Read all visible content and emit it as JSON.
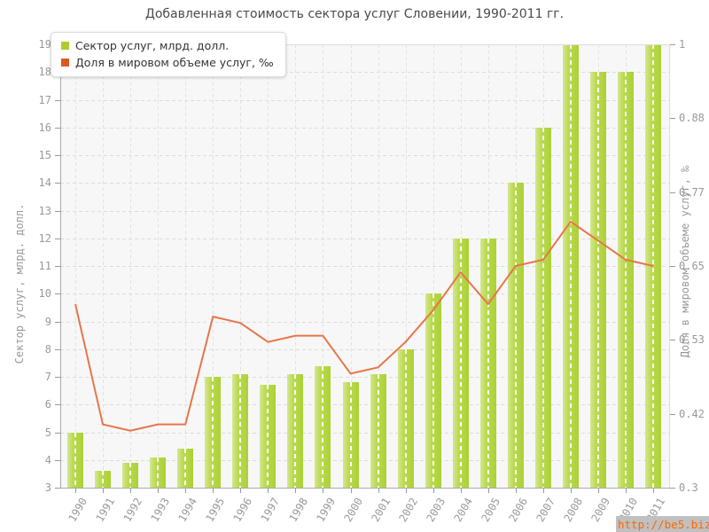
{
  "title": "Добавленная стоимость сектора услуг Словении, 1990-2011 гг.",
  "watermark": "http://be5.biz/",
  "colors": {
    "bar": "#abd134",
    "bar_light": "#d3e890",
    "line": "#e5764a",
    "legend_bar_swatch": "#aecb2f",
    "legend_line_swatch": "#dd5b21",
    "plot_background": "#f7f7f7",
    "grid": "#dcdcdc",
    "axis_text": "#999999",
    "title_text": "#4a4a4a",
    "watermark_background": "#c0c0c0",
    "watermark_text": "#ff6600"
  },
  "chart_data": {
    "type": "bar",
    "subtype": "bar+line combo, dual y-axes",
    "title": "Добавленная стоимость сектора услуг Словении, 1990-2011 гг.",
    "categories": [
      "1990",
      "1991",
      "1992",
      "1993",
      "1994",
      "1995",
      "1996",
      "1997",
      "1998",
      "1999",
      "2000",
      "2001",
      "2002",
      "2003",
      "2004",
      "2005",
      "2006",
      "2007",
      "2008",
      "2009",
      "2010",
      "2011"
    ],
    "series": [
      {
        "name": "Сектор услуг, млрд. долл.",
        "type": "bar",
        "axis": "left",
        "color": "#abd134",
        "values": [
          5.0,
          3.6,
          3.9,
          4.1,
          4.4,
          7.0,
          7.1,
          6.7,
          7.1,
          7.4,
          6.8,
          7.1,
          8.0,
          10.0,
          12.0,
          12.0,
          14.0,
          16.0,
          19.0,
          18.0,
          18.0,
          19.0
        ]
      },
      {
        "name": "Доля в мировом объеме услуг, ‰",
        "type": "line",
        "axis": "right",
        "color": "#e5764a",
        "values": [
          0.59,
          0.4,
          0.39,
          0.4,
          0.4,
          0.57,
          0.56,
          0.53,
          0.54,
          0.54,
          0.48,
          0.49,
          0.53,
          0.58,
          0.64,
          0.59,
          0.65,
          0.66,
          0.72,
          0.69,
          0.66,
          0.65
        ]
      }
    ],
    "left_axis": {
      "label": "Сектор услуг, млрд. долл.",
      "min": 3,
      "max": 19,
      "ticks": [
        "3",
        "4",
        "5",
        "6",
        "7",
        "8",
        "9",
        "10",
        "11",
        "12",
        "13",
        "14",
        "15",
        "16",
        "17",
        "18",
        "19"
      ]
    },
    "right_axis": {
      "label": "Доля в мировом объеме услуг, ‰",
      "min": 0.3,
      "max": 1,
      "ticks": [
        "1",
        "0.88",
        "0.77",
        "0.65",
        "0.53",
        "0.42",
        "0.3"
      ]
    },
    "grid": "dashed horizontal and vertical",
    "legend_position": "top-left"
  }
}
